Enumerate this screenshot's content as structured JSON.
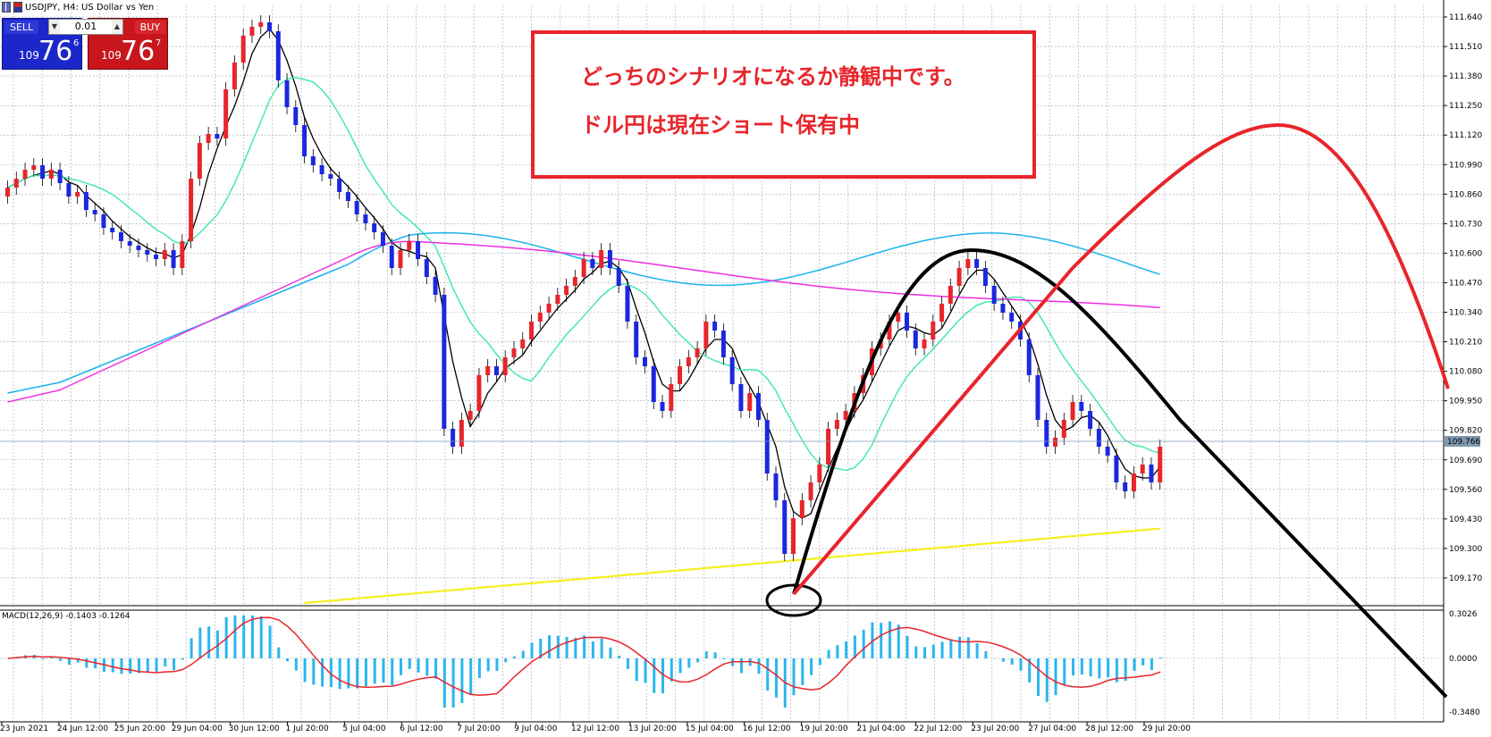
{
  "window": {
    "title": "USDJPY, H4:  US Dollar vs Yen"
  },
  "trade_panel": {
    "sell_label": "SELL",
    "buy_label": "BUY",
    "lot_value": "0.01",
    "sell_price_prefix": "109",
    "sell_price_big": "76",
    "sell_price_sup": "6",
    "buy_price_prefix": "109",
    "buy_price_big": "76",
    "buy_price_sup": "7"
  },
  "note": {
    "line1": "どっちのシナリオになるか静観中です。",
    "line2": "ドル円は現在ショート保有中"
  },
  "price_axis": {
    "labels": [
      "111.640",
      "111.510",
      "111.380",
      "111.250",
      "111.120",
      "110.990",
      "110.860",
      "110.730",
      "110.600",
      "110.470",
      "110.340",
      "110.210",
      "110.080",
      "109.950",
      "109.820",
      "109.690",
      "109.560",
      "109.430",
      "109.300",
      "109.170"
    ],
    "current_price": "109.766"
  },
  "macd": {
    "label": "MACD(12,26,9) -0.1403 -0.1264",
    "axis_labels": [
      "0.3026",
      "0.0000",
      "-0.3480"
    ]
  },
  "time_axis": {
    "labels": [
      "23 Jun 2021",
      "24 Jun 12:00",
      "25 Jun 20:00",
      "29 Jun 04:00",
      "30 Jun 12:00",
      "1 Jul 20:00",
      "5 Jul 04:00",
      "6 Jul 12:00",
      "7 Jul 20:00",
      "9 Jul 04:00",
      "12 Jul 12:00",
      "13 Jul 20:00",
      "15 Jul 04:00",
      "16 Jul 12:00",
      "19 Jul 20:00",
      "21 Jul 04:00",
      "22 Jul 12:00",
      "23 Jul 20:00",
      "27 Jul 04:00",
      "28 Jul 12:00",
      "29 Jul 20:00"
    ]
  },
  "colors": {
    "bull": "#e8252b",
    "bear": "#1b27e0",
    "ma_black": "#000000",
    "ma_green": "#3be8a8",
    "ma_blue": "#1ab3ee",
    "ma_magenta": "#ee2ee0",
    "ma_yellow": "#f5f01e",
    "macd_hist": "#2bb6ee",
    "macd_signal": "#e8252b",
    "grid": "#a0a8b0",
    "annotation_red": "#e8252b"
  },
  "icons": {
    "window_icon": "chart-window-icon"
  }
}
